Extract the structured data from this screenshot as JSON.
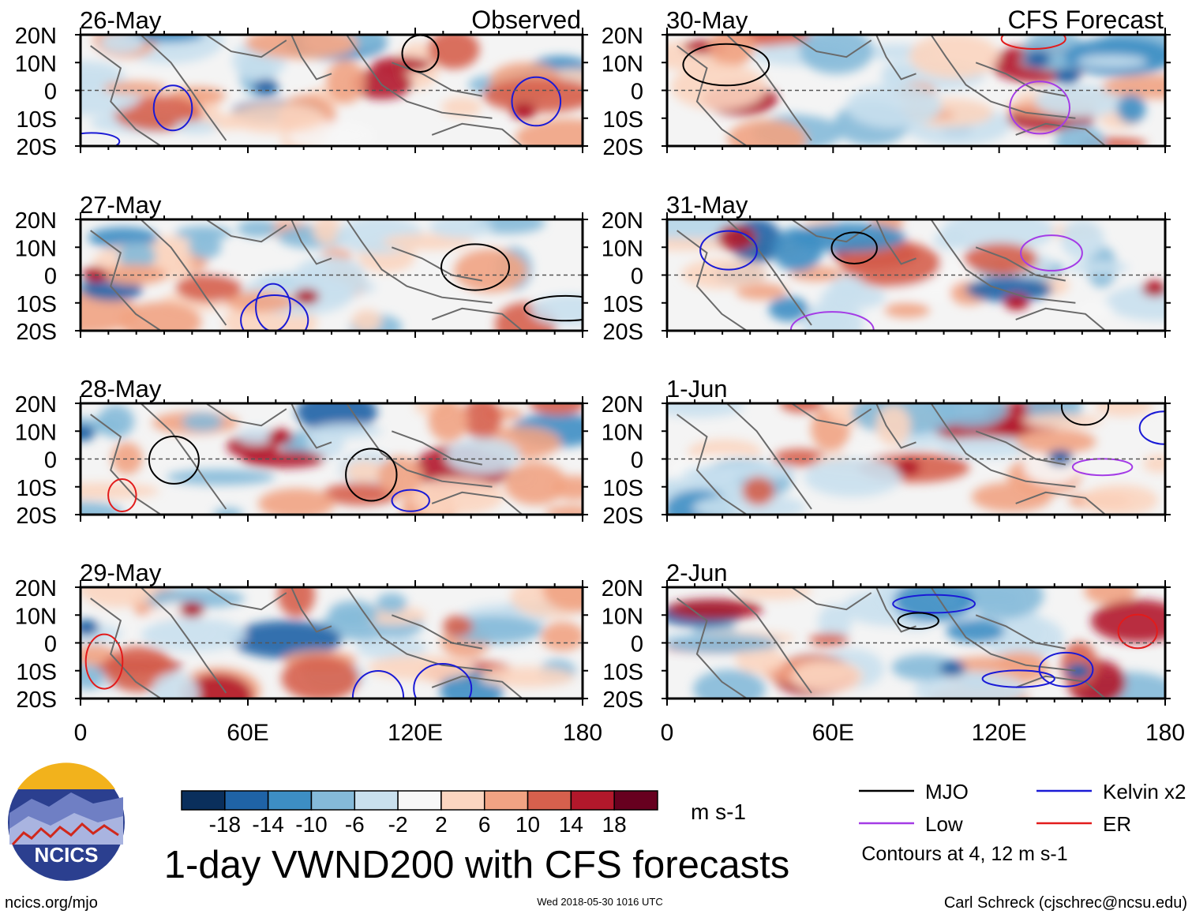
{
  "chart_data": {
    "type": "heatmap",
    "title": "1-day VWND200 with CFS forecasts",
    "units": "m s-1",
    "columns": [
      {
        "header": "Observed",
        "panels": [
          "26-May",
          "27-May",
          "28-May",
          "29-May"
        ]
      },
      {
        "header": "CFS Forecast",
        "panels": [
          "30-May",
          "31-May",
          "1-Jun",
          "2-Jun"
        ]
      }
    ],
    "lon_range": [
      0,
      180
    ],
    "lat_range": [
      -20,
      20
    ],
    "x_ticks": [
      "0",
      "60E",
      "120E",
      "180"
    ],
    "y_ticks": [
      "20N",
      "10N",
      "0",
      "10S",
      "20S"
    ],
    "colorbar": {
      "labels": [
        "-18",
        "-14",
        "-10",
        "-6",
        "-2",
        "2",
        "6",
        "10",
        "14",
        "18"
      ],
      "colors": [
        "#0a2f5c",
        "#1f63a6",
        "#3d8ec4",
        "#85bad9",
        "#c9e0ee",
        "#f7f7f7",
        "#fbd5c0",
        "#f1a383",
        "#d6604d",
        "#b2182b",
        "#67001f"
      ]
    },
    "legend": [
      {
        "label": "MJO",
        "color": "#000000"
      },
      {
        "label": "Kelvin x2",
        "color": "#1a1ad6"
      },
      {
        "label": "Low",
        "color": "#a43be6"
      },
      {
        "label": "ER",
        "color": "#e21b1b"
      }
    ],
    "contour_note": "Contours at 4, 12 m s-1"
  },
  "footer": {
    "logo_text": "NCICS",
    "url": "ncics.org/mjo",
    "timestamp": "Wed 2018-05-30 1016 UTC",
    "author": "Carl Schreck (cjschrec@ncsu.edu)"
  }
}
